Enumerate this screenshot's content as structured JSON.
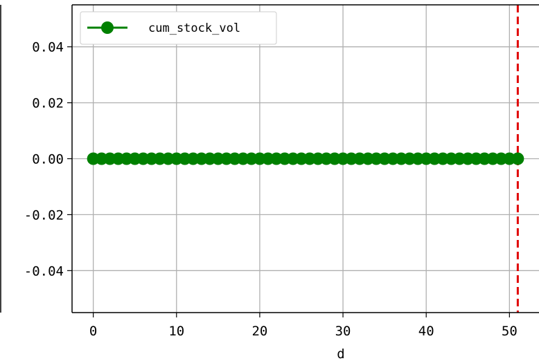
{
  "chart_data": {
    "type": "line",
    "title": "",
    "xlabel": "d",
    "ylabel": "",
    "xlim": [
      -2.55,
      53.55
    ],
    "ylim": [
      -0.055,
      0.055
    ],
    "xticks": [
      0,
      10,
      20,
      30,
      40,
      50
    ],
    "xtick_labels": [
      "0",
      "10",
      "20",
      "30",
      "40",
      "50"
    ],
    "yticks": [
      0.04,
      0.02,
      0.0,
      -0.02,
      -0.04
    ],
    "ytick_labels": [
      "0.04",
      "0.02",
      "0.00",
      "-0.02",
      "-0.04"
    ],
    "grid": true,
    "legend_position": "top-left",
    "series": [
      {
        "name": "cum_stock_vol",
        "color": "#008000",
        "marker": "circle",
        "x": [
          0,
          1,
          2,
          3,
          4,
          5,
          6,
          7,
          8,
          9,
          10,
          11,
          12,
          13,
          14,
          15,
          16,
          17,
          18,
          19,
          20,
          21,
          22,
          23,
          24,
          25,
          26,
          27,
          28,
          29,
          30,
          31,
          32,
          33,
          34,
          35,
          36,
          37,
          38,
          39,
          40,
          41,
          42,
          43,
          44,
          45,
          46,
          47,
          48,
          49,
          50,
          51
        ],
        "y": [
          0,
          0,
          0,
          0,
          0,
          0,
          0,
          0,
          0,
          0,
          0,
          0,
          0,
          0,
          0,
          0,
          0,
          0,
          0,
          0,
          0,
          0,
          0,
          0,
          0,
          0,
          0,
          0,
          0,
          0,
          0,
          0,
          0,
          0,
          0,
          0,
          0,
          0,
          0,
          0,
          0,
          0,
          0,
          0,
          0,
          0,
          0,
          0,
          0,
          0,
          0,
          0
        ]
      }
    ],
    "vlines": [
      {
        "x": 51,
        "color": "#e00000",
        "style": "dashed"
      }
    ]
  }
}
